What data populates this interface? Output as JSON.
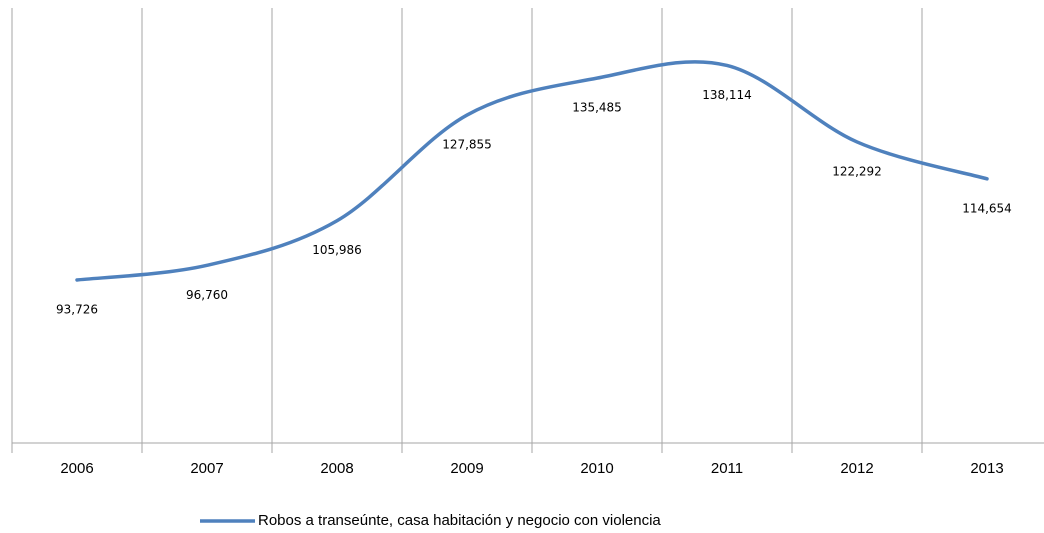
{
  "chart_data": {
    "type": "line",
    "categories": [
      "2006",
      "2007",
      "2008",
      "2009",
      "2010",
      "2011",
      "2012",
      "2013"
    ],
    "series": [
      {
        "name": "Robos a transeúnte, casa habitación y negocio con violencia",
        "color": "#4f81bd",
        "values": [
          93726,
          96760,
          105986,
          127855,
          135485,
          138114,
          122292,
          114654
        ],
        "value_labels": [
          "93,726",
          "96,760",
          "105,986",
          "127,855",
          "135,485",
          "138,114",
          "122,292",
          "114,654"
        ]
      }
    ],
    "ylim": [
      60000,
      150000
    ],
    "grid": true,
    "legend": "bottom"
  }
}
